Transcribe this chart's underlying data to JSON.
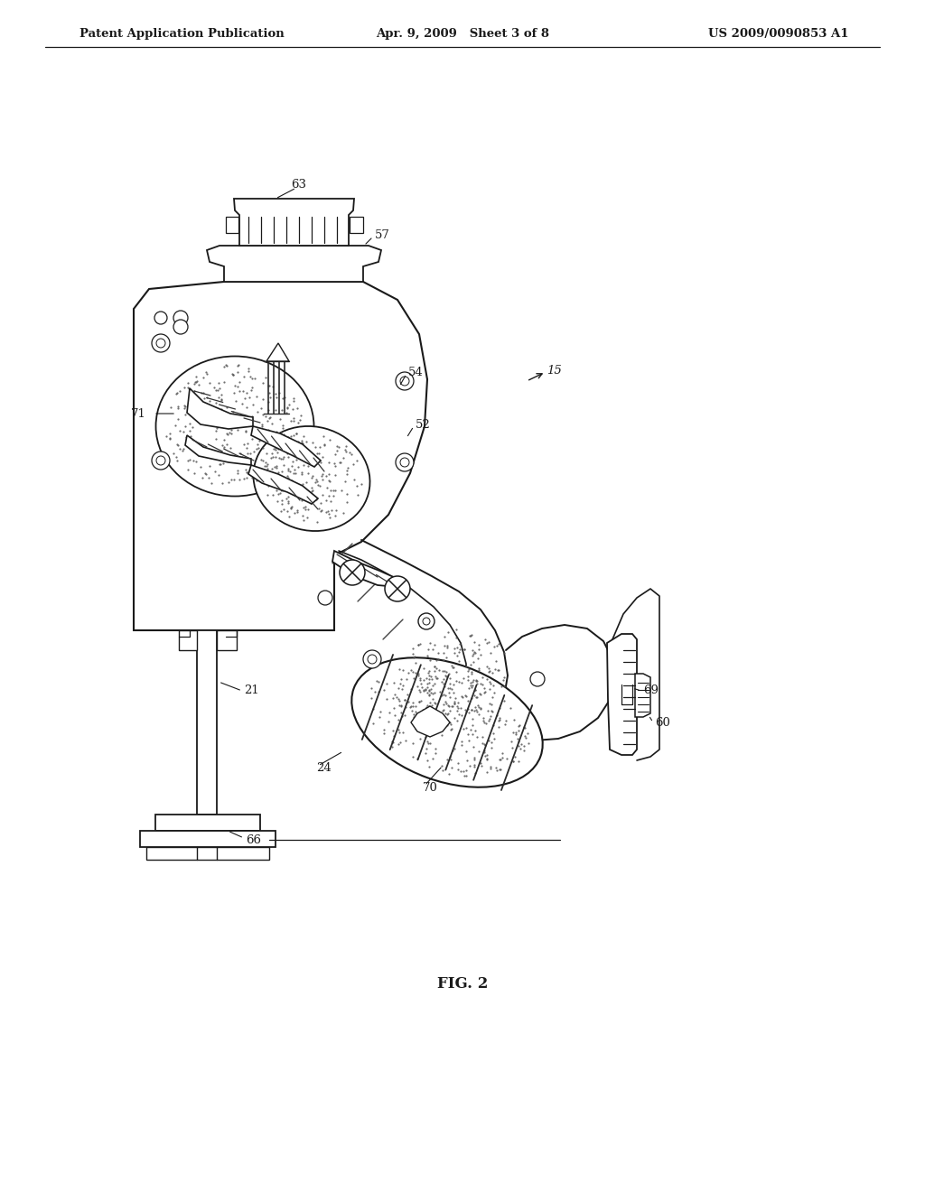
{
  "bg_color": "#ffffff",
  "line_color": "#1a1a1a",
  "header_left": "Patent Application Publication",
  "header_center": "Apr. 9, 2009   Sheet 3 of 8",
  "header_right": "US 2009/0090853 A1",
  "caption": "FIG. 2"
}
